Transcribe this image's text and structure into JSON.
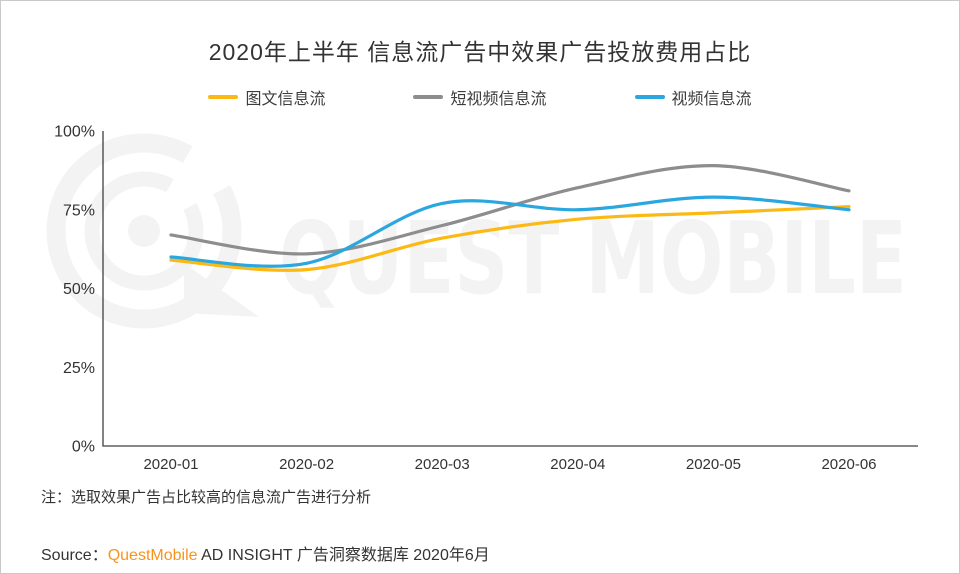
{
  "title": "2020年上半年 信息流广告中效果广告投放费用占比",
  "legend": [
    {
      "label": "图文信息流",
      "color": "#FDB913"
    },
    {
      "label": "短视频信息流",
      "color": "#8D8D8D"
    },
    {
      "label": "视频信息流",
      "color": "#2BA7DF"
    }
  ],
  "chart_data": {
    "type": "line",
    "x": [
      "2020-01",
      "2020-02",
      "2020-03",
      "2020-04",
      "2020-05",
      "2020-06"
    ],
    "series": [
      {
        "name": "图文信息流",
        "color": "#FDB913",
        "values": [
          59,
          56,
          66,
          72,
          74,
          76
        ]
      },
      {
        "name": "短视频信息流",
        "color": "#8D8D8D",
        "values": [
          67,
          61,
          70,
          82,
          89,
          81
        ]
      },
      {
        "name": "视频信息流",
        "color": "#2BA7DF",
        "values": [
          60,
          58,
          77,
          75,
          79,
          75
        ]
      }
    ],
    "title": "2020年上半年 信息流广告中效果广告投放费用占比",
    "xlabel": "",
    "ylabel": "",
    "ylim": [
      0,
      100
    ],
    "yticks": [
      0,
      25,
      50,
      75,
      100
    ],
    "ytick_labels": [
      "0%",
      "25%",
      "50%",
      "75%",
      "100%"
    ],
    "grid": false,
    "legend_position": "top",
    "curve": "smooth"
  },
  "watermark": {
    "wordmark": "QUEST MOBILE",
    "color": "#f3f3f3"
  },
  "axis_color": "#404040",
  "note": "注：选取效果广告占比较高的信息流广告进行分析",
  "source": {
    "prefix": "Source：",
    "brand": "QuestMobile",
    "brand_color": "#F7941E",
    "suffix": " AD INSIGHT 广告洞察数据库 2020年6月"
  }
}
